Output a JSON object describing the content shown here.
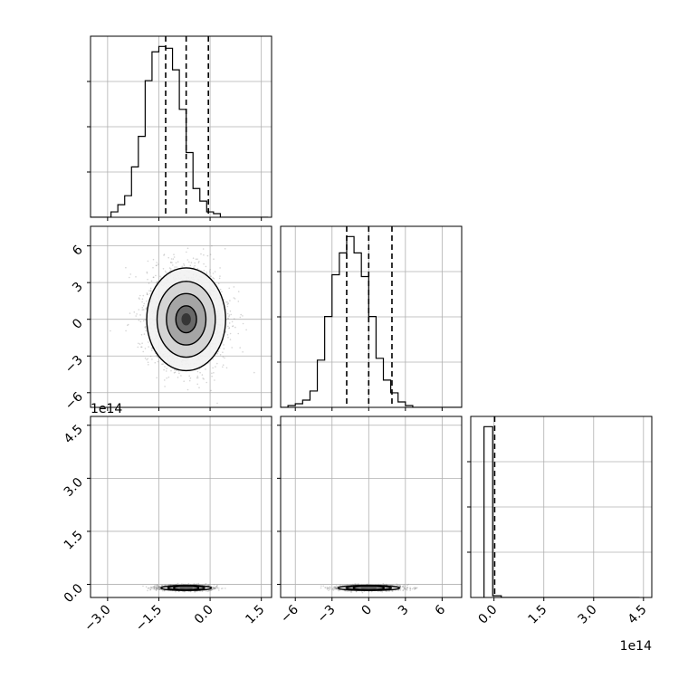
{
  "chart_data": {
    "type": "corner",
    "grid": true,
    "panels": [
      {
        "id": "hist-0",
        "type": "histogram",
        "xlim": [
          -3.5,
          1.8
        ],
        "xticks": [
          -3.0,
          -1.5,
          0.0,
          1.5
        ],
        "quantile_lines": [
          -1.3,
          -0.7,
          -0.05
        ],
        "bins_x0": -3.5,
        "bins_width": 0.2,
        "counts": [
          0,
          0,
          0,
          3,
          7,
          12,
          28,
          45,
          76,
          92,
          95,
          94,
          82,
          60,
          36,
          16,
          9,
          3,
          2,
          0,
          0,
          0,
          0,
          0,
          0,
          0
        ]
      },
      {
        "id": "scatter-1-0",
        "type": "2d-density",
        "xlim": [
          -3.5,
          1.8
        ],
        "ylim": [
          -7.2,
          7.6
        ],
        "yticks": [
          6,
          3,
          0,
          -3,
          -6
        ],
        "ytick_labels": [
          "6",
          "3",
          "0",
          "−3",
          "−6"
        ],
        "center": [
          -0.7,
          0.0
        ],
        "sigma": [
          0.55,
          2.0
        ],
        "n_points": 2600,
        "level_fractions": [
          0.12,
          0.32,
          0.6,
          0.88
        ]
      },
      {
        "id": "hist-1",
        "type": "histogram",
        "xlim": [
          -7.2,
          7.6
        ],
        "quantile_lines": [
          -1.8,
          0.0,
          1.9
        ],
        "bins_x0": -7.2,
        "bins_width": 0.6,
        "counts": [
          0,
          1,
          2,
          4,
          9,
          26,
          50,
          73,
          85,
          94,
          85,
          72,
          50,
          27,
          15,
          8,
          3,
          1,
          0,
          0,
          0,
          0,
          0,
          0,
          0
        ]
      },
      {
        "id": "scatter-2-0",
        "type": "2d-density",
        "xlim": [
          -3.5,
          1.8
        ],
        "ylim": [
          -0.37,
          4.75
        ],
        "yticks": [
          4.5,
          3.0,
          1.5,
          0.0
        ],
        "ytick_labels": [
          "4.5",
          "3.0",
          "1.5",
          "0.0"
        ],
        "offset_label": "1e14",
        "center": [
          -0.7,
          -0.1
        ],
        "sigma": [
          0.35,
          0.035
        ],
        "n_points": 2600,
        "level_fractions": [
          0.15,
          0.4,
          0.7
        ]
      },
      {
        "id": "scatter-2-1",
        "type": "2d-density",
        "xlim": [
          -7.2,
          7.6
        ],
        "ylim": [
          -0.37,
          4.75
        ],
        "center": [
          0.0,
          -0.1
        ],
        "sigma": [
          1.2,
          0.035
        ],
        "n_points": 2600,
        "level_fractions": [
          0.15,
          0.4,
          0.7
        ]
      },
      {
        "id": "hist-2",
        "type": "histogram",
        "xlim": [
          -0.7,
          4.75
        ],
        "quantile_lines": [
          0.02
        ],
        "bins_x0": -0.3,
        "bins_width": 0.26,
        "counts": [
          100,
          1,
          0,
          0,
          0,
          0,
          0,
          0,
          0,
          0,
          0,
          0,
          0,
          0,
          0,
          0,
          0,
          0
        ]
      }
    ],
    "x_axes": [
      {
        "panel": "scatter-2-0",
        "ticks": [
          -3.0,
          -1.5,
          0.0,
          1.5
        ],
        "labels": [
          "−3.0",
          "−1.5",
          "0.0",
          "1.5"
        ]
      },
      {
        "panel": "scatter-2-1",
        "ticks": [
          -6,
          -3,
          0,
          3,
          6
        ],
        "labels": [
          "−6",
          "−3",
          "0",
          "3",
          "6"
        ]
      },
      {
        "panel": "hist-2",
        "ticks": [
          0.0,
          1.5,
          3.0,
          4.5
        ],
        "labels": [
          "0.0",
          "1.5",
          "3.0",
          "4.5"
        ],
        "offset_label": "1e14"
      }
    ]
  }
}
